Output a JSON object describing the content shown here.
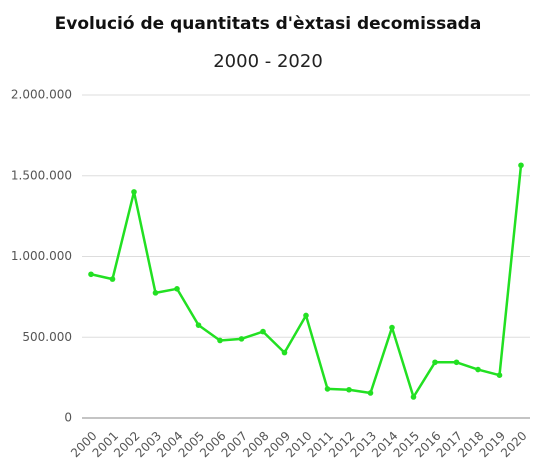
{
  "chart_data": {
    "type": "line",
    "title": "Evolució de quantitats d'èxtasi decomissada",
    "subtitle": "2000 - 2020",
    "categories": [
      "2000",
      "2001",
      "2002",
      "2003",
      "2004",
      "2005",
      "2006",
      "2007",
      "2008",
      "2009",
      "2010",
      "2011",
      "2012",
      "2013",
      "2014",
      "2015",
      "2016",
      "2017",
      "2018",
      "2019",
      "2020"
    ],
    "series": [
      {
        "color": "#22e022",
        "values": [
          890000,
          860000,
          1400000,
          775000,
          800000,
          575000,
          480000,
          490000,
          535000,
          405000,
          635000,
          180000,
          175000,
          155000,
          560000,
          130000,
          345000,
          345000,
          300000,
          265000,
          1565000
        ]
      }
    ],
    "ylim": [
      0,
      2000000
    ],
    "yticks": [
      0,
      {
        "value": 500000,
        "label": "500.000"
      },
      {
        "value": 1000000,
        "label": "1.000.000"
      },
      {
        "value": 1500000,
        "label": "1.500.000"
      },
      {
        "value": 2000000,
        "label": "2.000.000"
      }
    ],
    "grid": true
  }
}
